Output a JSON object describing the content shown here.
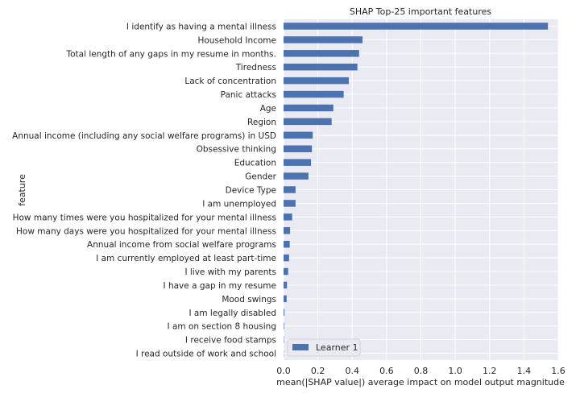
{
  "chart_data": {
    "type": "bar",
    "orientation": "horizontal",
    "title": "SHAP Top-25 important features",
    "xlabel": "mean(|SHAP value|) average impact on model output magnitude",
    "ylabel": "feature",
    "xlim": [
      0.0,
      1.6
    ],
    "xticks": [
      0.0,
      0.2,
      0.4,
      0.6,
      0.8,
      1.0,
      1.2,
      1.4,
      1.6
    ],
    "xtick_labels": [
      "0.0",
      "0.2",
      "0.4",
      "0.6",
      "0.8",
      "1.0",
      "1.2",
      "1.4",
      "1.6"
    ],
    "grid": true,
    "legend": "bottom-left",
    "categories": [
      "I identify as having a mental illness",
      "Household Income",
      "Total length of any gaps in my resume in months.",
      "Tiredness",
      "Lack of concentration",
      "Panic attacks",
      "Age",
      "Region",
      "Annual income (including any social welfare programs) in USD",
      "Obsessive thinking",
      "Education",
      "Gender",
      "Device Type",
      "I am unemployed",
      "How many times were you hospitalized for your mental illness",
      "How many days were you hospitalized for your mental illness",
      "Annual income from social welfare programs",
      "I am currently employed at least part-time",
      "I live with my parents",
      "I have a gap in my resume",
      "Mood swings",
      "I am legally disabled",
      "I am on section 8 housing",
      "I receive food stamps",
      "I read outside of work and school"
    ],
    "series": [
      {
        "name": "Learner 1",
        "color": "#4c72b0",
        "values": [
          1.54,
          0.46,
          0.44,
          0.43,
          0.38,
          0.35,
          0.29,
          0.28,
          0.17,
          0.165,
          0.16,
          0.145,
          0.07,
          0.07,
          0.05,
          0.038,
          0.036,
          0.032,
          0.027,
          0.02,
          0.018,
          0.005,
          0.003,
          0.002,
          0.001
        ]
      }
    ]
  },
  "colors": {
    "plot_background": "#eaeaf2",
    "grid": "#ffffff",
    "bar": "#4c72b0"
  }
}
